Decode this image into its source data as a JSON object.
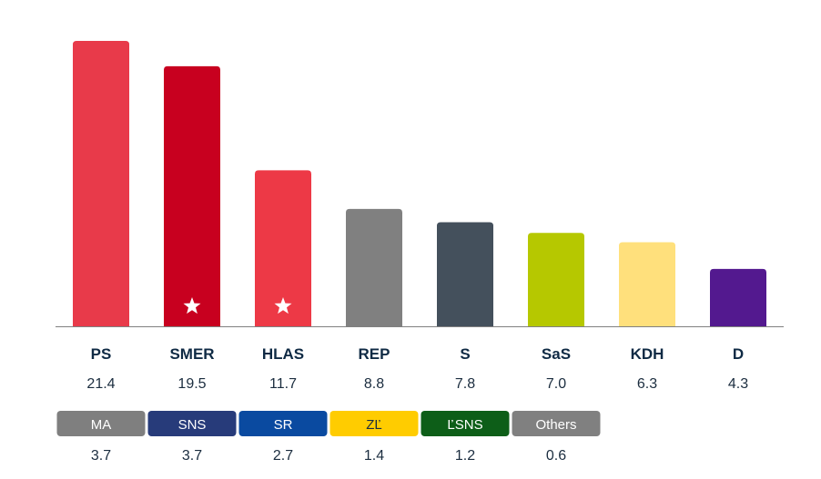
{
  "chart_data": {
    "type": "bar",
    "categories": [
      "PS",
      "SMER",
      "HLAS",
      "REP",
      "S",
      "SaS",
      "KDH",
      "D"
    ],
    "values": [
      21.4,
      19.5,
      11.7,
      8.8,
      7.8,
      7.0,
      6.3,
      4.3
    ],
    "value_labels": [
      "21.4",
      "19.5",
      "11.7",
      "8.8",
      "7.8",
      "7.0",
      "6.3",
      "4.3"
    ],
    "colors": [
      "#e83a4a",
      "#c8001f",
      "#ed3946",
      "#808080",
      "#44505c",
      "#b6c800",
      "#ffe07c",
      "#53198f"
    ],
    "starred": [
      false,
      true,
      true,
      false,
      false,
      false,
      false,
      false
    ],
    "ylim": [
      0,
      21.4
    ],
    "title": "",
    "xlabel": "",
    "ylabel": "",
    "grid": false,
    "minor_parties": [
      {
        "name": "MA",
        "value": "3.7",
        "color": "#7f7f7f",
        "dark_text": false
      },
      {
        "name": "SNS",
        "value": "3.7",
        "color": "#273b7a",
        "dark_text": false
      },
      {
        "name": "SR",
        "value": "2.7",
        "color": "#0a4aa0",
        "dark_text": false
      },
      {
        "name": "ZĽ",
        "value": "1.4",
        "color": "#ffcc00",
        "dark_text": true
      },
      {
        "name": "ĽSNS",
        "value": "1.2",
        "color": "#0d5e18",
        "dark_text": false
      },
      {
        "name": "Others",
        "value": "0.6",
        "color": "#808080",
        "dark_text": false
      }
    ]
  },
  "icons": {
    "winner_marker": "star-icon"
  },
  "colors": {
    "axis": "#808080",
    "text": "#0f2a44"
  }
}
